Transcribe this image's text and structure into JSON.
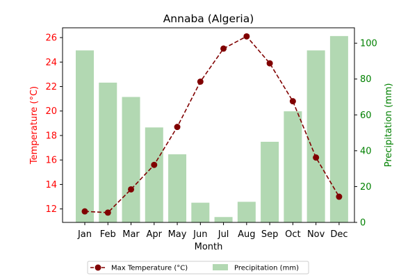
{
  "chart_data": {
    "type": "bar+line",
    "title": "Annaba (Algeria)",
    "xlabel": "Month",
    "categories": [
      "Jan",
      "Feb",
      "Mar",
      "Apr",
      "May",
      "Jun",
      "Jul",
      "Aug",
      "Sep",
      "Oct",
      "Nov",
      "Dec"
    ],
    "left_axis": {
      "label": "Temperature (°C)",
      "color": "#ff0000",
      "ylim": [
        10.9,
        26.8
      ],
      "ticks": [
        12,
        14,
        16,
        18,
        20,
        22,
        24,
        26
      ]
    },
    "right_axis": {
      "label": "Precipitation (mm)",
      "color": "#008000",
      "ylim": [
        0,
        108.6
      ],
      "ticks": [
        0,
        20,
        40,
        60,
        80,
        100
      ]
    },
    "series": [
      {
        "name": "Max Temperature (°C)",
        "type": "line",
        "axis": "left",
        "color": "#800000",
        "style": "dashed",
        "marker": "circle",
        "values": [
          11.8,
          11.7,
          13.6,
          15.6,
          18.7,
          22.4,
          25.1,
          26.1,
          23.9,
          20.8,
          16.2,
          13.0
        ]
      },
      {
        "name": "Precipitation (mm)",
        "type": "bar",
        "axis": "right",
        "color": "#b2d8b2",
        "values": [
          96,
          78,
          70,
          53,
          38,
          11,
          3,
          11.5,
          45,
          62,
          96,
          104
        ]
      }
    ],
    "legend": {
      "placement": "bottom-center",
      "entries": [
        "Max Temperature (°C)",
        "Precipitation (mm)"
      ]
    },
    "grid": false
  }
}
